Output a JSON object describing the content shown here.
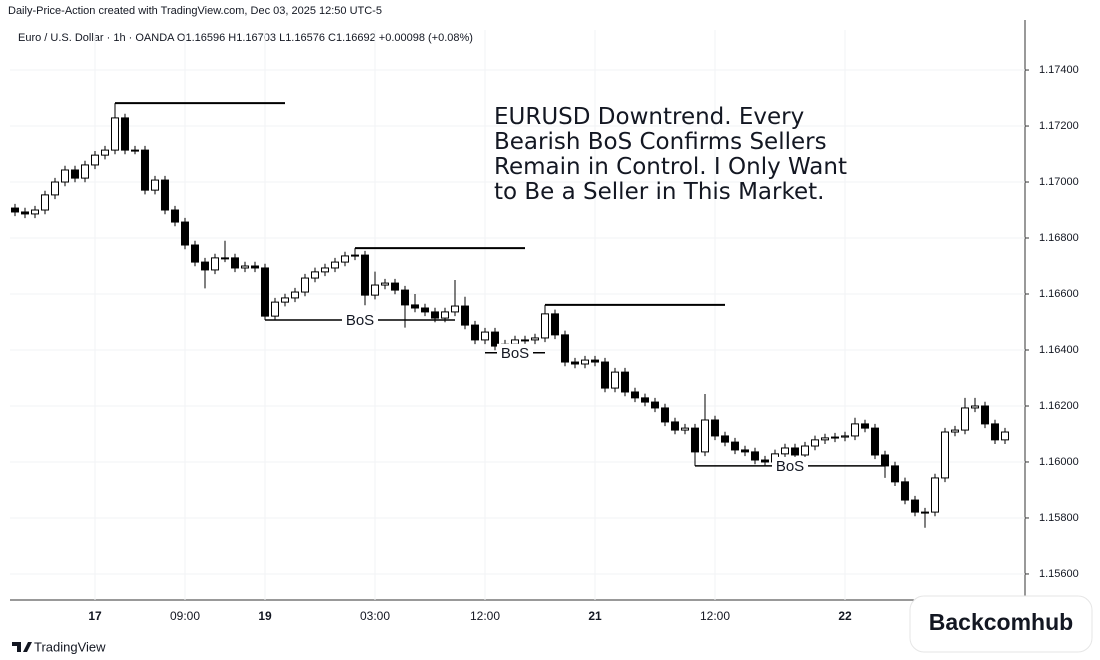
{
  "header": "Daily-Price-Action created with TradingView.com, Dec 03, 2025 12:50 UTC-5",
  "footer": {
    "brand": "TradingView",
    "badge": "Backcomhub"
  },
  "chart_data": {
    "type": "candlestick",
    "legend": "Euro / U.S. Dollar · 1h · OANDA  O1.16596 H1.16703 L1.16576 C1.16692 +0.00098 (+0.08%)",
    "annotation": [
      "EURUSD Downtrend. Every",
      "Bearish BoS Confirms Sellers",
      "Remain in Control. I Only Want",
      "to Be a Seller in This Market."
    ],
    "categories": [
      null,
      null,
      null,
      null,
      null,
      null,
      null,
      null,
      "17",
      null,
      null,
      null,
      null,
      null,
      null,
      null,
      null,
      "09:00",
      null,
      null,
      null,
      null,
      null,
      null,
      null,
      "19",
      null,
      null,
      null,
      null,
      null,
      null,
      null,
      null,
      null,
      null,
      "03:00",
      null,
      null,
      null,
      null,
      null,
      null,
      null,
      null,
      null,
      null,
      "12:00",
      null,
      null,
      null,
      null,
      null,
      null,
      null,
      null,
      null,
      null,
      "21",
      null,
      null,
      null,
      null,
      null,
      null,
      null,
      null,
      null,
      null,
      null,
      "12:00",
      null,
      null,
      null,
      null,
      null,
      null,
      null,
      null,
      null,
      null,
      null,
      null,
      "22",
      null,
      null,
      null,
      null,
      null,
      null,
      null,
      null,
      null,
      null,
      null,
      null,
      null,
      null,
      null,
      null
    ],
    "open": [
      1.16907,
      1.16893,
      1.16886,
      1.169,
      1.16954,
      1.17,
      1.17043,
      1.17014,
      1.17061,
      1.17096,
      1.17114,
      1.17229,
      1.17114,
      1.17114,
      1.16971,
      1.17007,
      1.169,
      1.16857,
      1.16775,
      1.16714,
      1.16686,
      1.16729,
      1.16729,
      1.16693,
      1.167,
      1.16693,
      1.16521,
      1.16571,
      1.16586,
      1.16607,
      1.16657,
      1.16679,
      1.16693,
      1.16714,
      1.16736,
      1.16739,
      1.16596,
      1.16632,
      1.16639,
      1.16614,
      1.16561,
      1.1655,
      1.16536,
      1.16514,
      1.16536,
      1.16557,
      1.16489,
      1.16436,
      1.16464,
      1.16414,
      1.16421,
      1.16436,
      1.16436,
      1.16443,
      1.16529,
      1.16454,
      1.16357,
      1.1635,
      1.16364,
      1.16357,
      1.16264,
      1.16321,
      1.1625,
      1.16229,
      1.16214,
      1.16193,
      1.16143,
      1.16114,
      1.16121,
      1.16036,
      1.1615,
      1.16093,
      1.16071,
      1.16043,
      1.16036,
      1.16007,
      1.16,
      1.16029,
      1.1605,
      1.16025,
      1.16057,
      1.16079,
      1.16086,
      1.16089,
      1.16093,
      1.16136,
      1.16121,
      1.16025,
      1.15986,
      1.15929,
      1.15864,
      1.15821,
      1.15821,
      1.15943,
      1.16107,
      1.16114,
      1.16193,
      1.162,
      1.16136,
      1.16079
    ],
    "high": [
      1.16922,
      1.16908,
      1.16915,
      1.16969,
      1.17015,
      1.17058,
      1.17058,
      1.17076,
      1.17111,
      1.17129,
      1.17282,
      1.17244,
      1.17129,
      1.17129,
      1.17022,
      1.17022,
      1.16915,
      1.16872,
      1.1679,
      1.16729,
      1.16744,
      1.1679,
      1.16744,
      1.16715,
      1.16715,
      1.16708,
      1.16586,
      1.16601,
      1.16622,
      1.16672,
      1.16694,
      1.16708,
      1.16729,
      1.16751,
      1.16764,
      1.16754,
      1.1668,
      1.16654,
      1.16654,
      1.16629,
      1.166,
      1.16565,
      1.16551,
      1.16551,
      1.1665,
      1.1659,
      1.16504,
      1.16479,
      1.16479,
      1.16436,
      1.16451,
      1.16451,
      1.16458,
      1.16561,
      1.16544,
      1.16469,
      1.16372,
      1.16379,
      1.16379,
      1.16372,
      1.16336,
      1.16336,
      1.16265,
      1.16244,
      1.16229,
      1.16208,
      1.16158,
      1.16136,
      1.16136,
      1.16243,
      1.16165,
      1.16108,
      1.16086,
      1.16058,
      1.16051,
      1.16022,
      1.16044,
      1.16065,
      1.16065,
      1.16072,
      1.16094,
      1.16101,
      1.16104,
      1.16108,
      1.16158,
      1.16151,
      1.16136,
      1.1604,
      1.16001,
      1.15944,
      1.15879,
      1.15836,
      1.15958,
      1.16122,
      1.16129,
      1.16229,
      1.16229,
      1.16215,
      1.16151,
      1.16122
    ],
    "low": [
      1.16878,
      1.16871,
      1.16871,
      1.16885,
      1.16939,
      1.16985,
      1.16999,
      1.16999,
      1.17046,
      1.17081,
      1.17099,
      1.17099,
      1.17099,
      1.16956,
      1.16956,
      1.16885,
      1.16842,
      1.1676,
      1.16699,
      1.1662,
      1.16671,
      1.16714,
      1.16678,
      1.16678,
      1.16678,
      1.16507,
      1.16506,
      1.16556,
      1.16571,
      1.16592,
      1.16642,
      1.16664,
      1.16678,
      1.16699,
      1.16721,
      1.1656,
      1.16581,
      1.16617,
      1.16599,
      1.1648,
      1.16535,
      1.16521,
      1.16499,
      1.16499,
      1.16521,
      1.16474,
      1.16421,
      1.16421,
      1.16399,
      1.1639,
      1.16406,
      1.16421,
      1.16421,
      1.16428,
      1.16439,
      1.16342,
      1.16335,
      1.16335,
      1.16342,
      1.16249,
      1.16249,
      1.16235,
      1.16214,
      1.16199,
      1.16178,
      1.16128,
      1.16099,
      1.16099,
      1.15986,
      1.16021,
      1.16078,
      1.16056,
      1.16028,
      1.16021,
      1.15992,
      1.15985,
      1.15985,
      1.16014,
      1.1601,
      1.1601,
      1.16042,
      1.16064,
      1.16071,
      1.16074,
      1.16078,
      1.16106,
      1.1601,
      1.15943,
      1.15914,
      1.15849,
      1.15806,
      1.15765,
      1.15806,
      1.15928,
      1.16092,
      1.16099,
      1.16178,
      1.16121,
      1.16064,
      1.16064
    ],
    "close": [
      1.16893,
      1.16886,
      1.169,
      1.16954,
      1.17,
      1.17043,
      1.17014,
      1.17061,
      1.17096,
      1.17114,
      1.17229,
      1.17114,
      1.17114,
      1.16971,
      1.17007,
      1.169,
      1.16857,
      1.16775,
      1.16714,
      1.16686,
      1.16729,
      1.16729,
      1.16693,
      1.167,
      1.16693,
      1.16521,
      1.16571,
      1.16586,
      1.16607,
      1.16657,
      1.16679,
      1.16693,
      1.16714,
      1.16736,
      1.16739,
      1.16596,
      1.16632,
      1.16639,
      1.16614,
      1.16561,
      1.1655,
      1.16536,
      1.16514,
      1.16536,
      1.16557,
      1.16489,
      1.16436,
      1.16464,
      1.16414,
      1.16421,
      1.16436,
      1.16436,
      1.16443,
      1.16529,
      1.16454,
      1.16357,
      1.1635,
      1.16364,
      1.16357,
      1.16264,
      1.16321,
      1.1625,
      1.16229,
      1.16214,
      1.16193,
      1.16143,
      1.16114,
      1.16121,
      1.16036,
      1.1615,
      1.16093,
      1.16071,
      1.16043,
      1.16036,
      1.16007,
      1.16,
      1.16029,
      1.1605,
      1.16025,
      1.16057,
      1.16079,
      1.16086,
      1.16089,
      1.16093,
      1.16136,
      1.16121,
      1.16025,
      1.15986,
      1.15929,
      1.15864,
      1.15821,
      1.15821,
      1.15943,
      1.16107,
      1.16114,
      1.16193,
      1.162,
      1.16136,
      1.16079,
      1.16107
    ],
    "swing_highs": [
      {
        "value": 1.17282,
        "from": 10,
        "to": 27
      },
      {
        "value": 1.16764,
        "from": 34,
        "to": 51
      },
      {
        "value": 1.16561,
        "from": 53,
        "to": 71
      }
    ],
    "bos": [
      {
        "label": "BoS",
        "value": 1.16507,
        "from": 25,
        "to": 44
      },
      {
        "label": "BoS",
        "value": 1.1639,
        "from": 47,
        "to": 53
      },
      {
        "label": "BoS",
        "value": 1.15986,
        "from": 68,
        "to": 87
      }
    ],
    "ylim": [
      1.15507,
      1.17543
    ],
    "yticks": [
      {
        "value": 1.174,
        "label": "1.17400"
      },
      {
        "value": 1.172,
        "label": "1.17200"
      },
      {
        "value": 1.17,
        "label": "1.17000"
      },
      {
        "value": 1.168,
        "label": "1.16800"
      },
      {
        "value": 1.166,
        "label": "1.16600"
      },
      {
        "value": 1.164,
        "label": "1.16400"
      },
      {
        "value": 1.162,
        "label": "1.16200"
      },
      {
        "value": 1.16,
        "label": "1.16000"
      },
      {
        "value": 1.158,
        "label": "1.15800"
      },
      {
        "value": 1.156,
        "label": "1.15600"
      }
    ],
    "grid": true,
    "up_color": "#ffffff",
    "down_color": "#000000"
  }
}
